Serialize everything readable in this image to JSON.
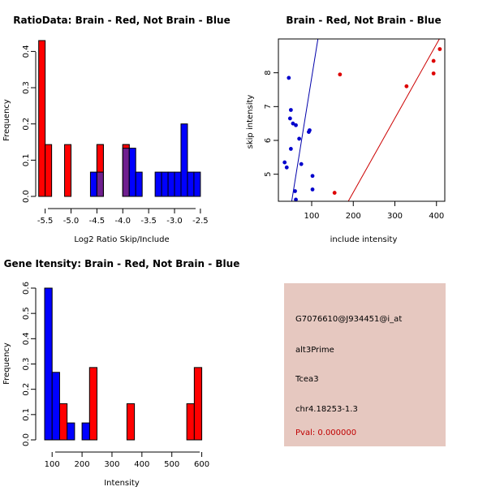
{
  "colors": {
    "red": "#ff0000",
    "blue": "#0000ff",
    "overlap": "#6f1f8f",
    "info_bg": "#e6c8c0",
    "pval": "#c00000",
    "dot_red": "#dd0000",
    "dot_blue": "#0000cc",
    "line_red": "#cc0000",
    "line_blue": "#0000aa"
  },
  "info_panel": {
    "probe": "G7076610@J934451@i_at",
    "event": "alt3Prime",
    "gene": "Tcea3",
    "location": "chr4.18253-1.3",
    "pval": "Pval: 0.000000"
  },
  "chart_data": [
    {
      "id": "ratio-hist",
      "type": "bar",
      "title": "RatioData: Brain - Red, Not Brain - Blue",
      "xlabel": "Log2 Ratio Skip/Include",
      "ylabel": "Frequency",
      "xlim": [
        -5.62,
        -2.42
      ],
      "ylim": [
        0,
        0.43
      ],
      "xticks": [
        -5.5,
        -5.0,
        -4.5,
        -4.0,
        -3.5,
        -3.0,
        -2.5
      ],
      "xtick_labels": [
        "-5.5",
        "-5.0",
        "-4.5",
        "-4.0",
        "-3.5",
        "-3.0",
        "-2.5"
      ],
      "yticks": [
        0,
        0.1,
        0.2,
        0.3,
        0.4
      ],
      "ytick_labels": [
        "0.0",
        "0.1",
        "0.2",
        "0.3",
        "0.4"
      ],
      "bin_width": 0.125,
      "series": [
        {
          "name": "Brain",
          "color": "red",
          "bins": [
            {
              "x0": -5.625,
              "value": 0.43
            },
            {
              "x0": -5.5,
              "value": 0.143
            },
            {
              "x0": -5.125,
              "value": 0.143
            },
            {
              "x0": -4.5,
              "value": 0.143
            },
            {
              "x0": -4.0,
              "value": 0.143
            }
          ]
        },
        {
          "name": "Not Brain",
          "color": "blue",
          "bins": [
            {
              "x0": -4.625,
              "value": 0.067
            },
            {
              "x0": -4.5,
              "value": 0.067
            },
            {
              "x0": -4.0,
              "value": 0.133
            },
            {
              "x0": -3.875,
              "value": 0.133
            },
            {
              "x0": -3.75,
              "value": 0.067
            },
            {
              "x0": -3.375,
              "value": 0.067
            },
            {
              "x0": -3.25,
              "value": 0.067
            },
            {
              "x0": -3.125,
              "value": 0.067
            },
            {
              "x0": -3.0,
              "value": 0.067
            },
            {
              "x0": -2.875,
              "value": 0.2
            },
            {
              "x0": -2.75,
              "value": 0.067
            },
            {
              "x0": -2.625,
              "value": 0.067
            }
          ]
        }
      ]
    },
    {
      "id": "intensity-scatter",
      "type": "scatter",
      "title": "Brain - Red, Not Brain - Blue",
      "xlabel": "include intensity",
      "ylabel": "skip intensity",
      "xlim": [
        20,
        420
      ],
      "ylim": [
        4.2,
        9.0
      ],
      "xticks": [
        100,
        200,
        300,
        400
      ],
      "xtick_labels": [
        "100",
        "200",
        "300",
        "400"
      ],
      "yticks": [
        5,
        6,
        7,
        8
      ],
      "ytick_labels": [
        "5",
        "6",
        "7",
        "8"
      ],
      "series": [
        {
          "name": "Brain",
          "color": "red",
          "points": [
            [
              168,
              7.95
            ],
            [
              328,
              7.6
            ],
            [
              393,
              7.98
            ],
            [
              393,
              8.35
            ],
            [
              408,
              8.7
            ],
            [
              155,
              4.45
            ]
          ]
        },
        {
          "name": "Not Brain",
          "color": "blue",
          "points": [
            [
              45,
              7.85
            ],
            [
              50,
              6.9
            ],
            [
              48,
              6.65
            ],
            [
              55,
              6.5
            ],
            [
              62,
              6.45
            ],
            [
              95,
              6.3
            ],
            [
              93,
              6.25
            ],
            [
              70,
              6.05
            ],
            [
              50,
              5.75
            ],
            [
              75,
              5.3
            ],
            [
              35,
              5.35
            ],
            [
              40,
              5.2
            ],
            [
              102,
              4.95
            ],
            [
              60,
              4.5
            ],
            [
              102,
              4.55
            ],
            [
              62,
              4.25
            ]
          ]
        }
      ],
      "fit_lines": [
        {
          "name": "Not Brain fit",
          "color": "blue",
          "from": [
            52,
            4.2
          ],
          "to": [
            115,
            9.0
          ]
        },
        {
          "name": "Brain fit",
          "color": "red",
          "from": [
            188,
            4.2
          ],
          "to": [
            407,
            9.0
          ]
        }
      ]
    },
    {
      "id": "gene-hist",
      "type": "bar",
      "title": "Gene Itensity: Brain - Red, Not Brain - Blue",
      "xlabel": "Intensity",
      "ylabel": "Frequency",
      "xlim": [
        56,
        612
      ],
      "ylim": [
        0,
        0.6
      ],
      "xticks": [
        100,
        200,
        300,
        400,
        500,
        600
      ],
      "xtick_labels": [
        "100",
        "200",
        "300",
        "400",
        "500",
        "600"
      ],
      "yticks": [
        0,
        0.1,
        0.2,
        0.3,
        0.4,
        0.5,
        0.6
      ],
      "ytick_labels": [
        "0.0",
        "0.1",
        "0.2",
        "0.3",
        "0.4",
        "0.5",
        "0.6"
      ],
      "bin_width": 25,
      "series": [
        {
          "name": "Brain",
          "color": "red",
          "bins": [
            {
              "x0": 125,
              "value": 0.143
            },
            {
              "x0": 225,
              "value": 0.286
            },
            {
              "x0": 350,
              "value": 0.143
            },
            {
              "x0": 550,
              "value": 0.143
            },
            {
              "x0": 575,
              "value": 0.286
            }
          ]
        },
        {
          "name": "Not Brain",
          "color": "blue",
          "bins": [
            {
              "x0": 75,
              "value": 0.6
            },
            {
              "x0": 100,
              "value": 0.267
            },
            {
              "x0": 150,
              "value": 0.067
            },
            {
              "x0": 200,
              "value": 0.067
            }
          ]
        }
      ]
    }
  ]
}
